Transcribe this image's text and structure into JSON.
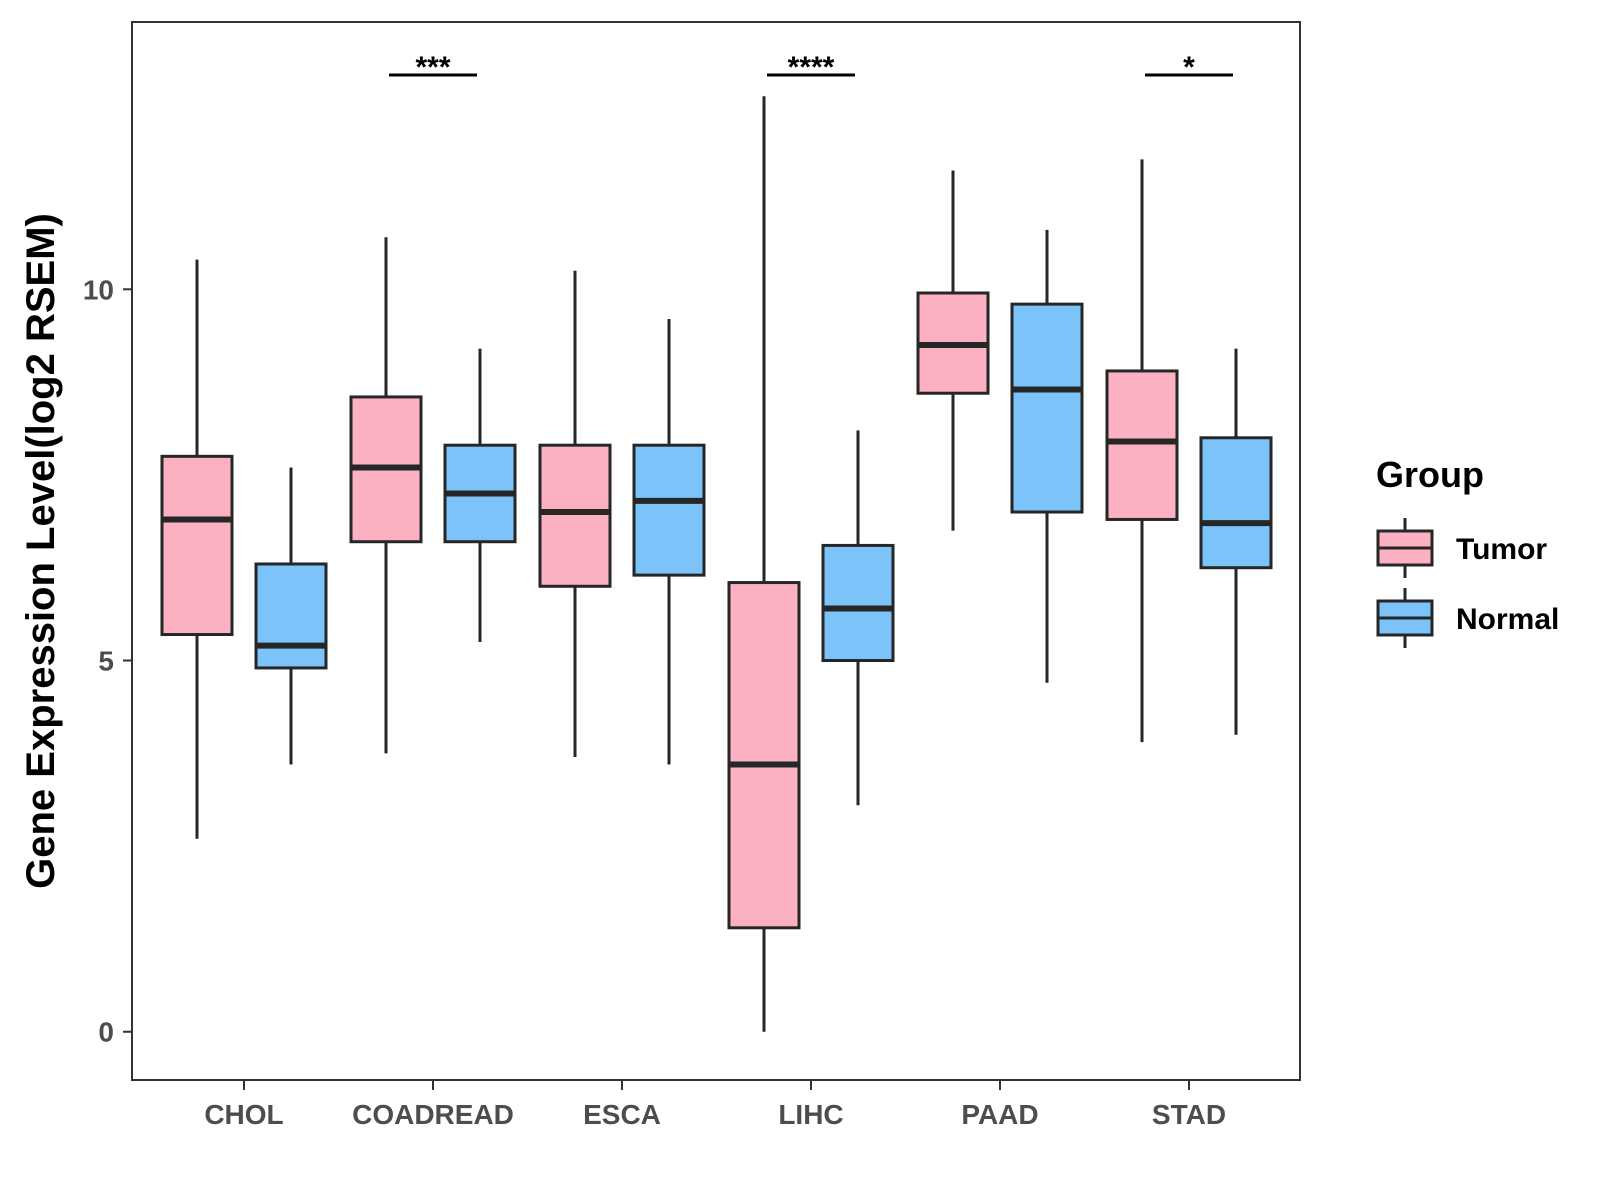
{
  "chart_data": {
    "type": "boxplot",
    "title": "",
    "xlabel": "",
    "ylabel": "Gene Expression Level(log2 RSEM)",
    "ylim": [
      -0.65,
      13.6
    ],
    "yticks": [
      0,
      5,
      10
    ],
    "ytick_labels": [
      "0",
      "5",
      "10"
    ],
    "categories": [
      "CHOL",
      "COADREAD",
      "ESCA",
      "LIHC",
      "PAAD",
      "STAD"
    ],
    "legend": {
      "title": "Group",
      "position": "right",
      "entries": [
        "Tumor",
        "Normal"
      ]
    },
    "colors": {
      "Tumor": "#fbb1c2",
      "Normal": "#7bc3f8",
      "outline": "#262626"
    },
    "series": [
      {
        "name": "Tumor",
        "boxes": [
          {
            "category": "CHOL",
            "min": 2.6,
            "q1": 5.35,
            "median": 6.9,
            "q3": 7.75,
            "max": 10.4
          },
          {
            "category": "COADREAD",
            "min": 3.75,
            "q1": 6.6,
            "median": 7.6,
            "q3": 8.55,
            "max": 10.7
          },
          {
            "category": "ESCA",
            "min": 3.7,
            "q1": 6.0,
            "median": 7.0,
            "q3": 7.9,
            "max": 10.25
          },
          {
            "category": "LIHC",
            "min": 0.0,
            "q1": 1.4,
            "median": 3.6,
            "q3": 6.05,
            "max": 12.6
          },
          {
            "category": "PAAD",
            "min": 6.75,
            "q1": 8.6,
            "median": 9.25,
            "q3": 9.95,
            "max": 11.6
          },
          {
            "category": "STAD",
            "min": 3.9,
            "q1": 6.9,
            "median": 7.95,
            "q3": 8.9,
            "max": 11.75
          }
        ]
      },
      {
        "name": "Normal",
        "boxes": [
          {
            "category": "CHOL",
            "min": 3.6,
            "q1": 4.9,
            "median": 5.2,
            "q3": 6.3,
            "max": 7.6
          },
          {
            "category": "COADREAD",
            "min": 5.25,
            "q1": 6.6,
            "median": 7.25,
            "q3": 7.9,
            "max": 9.2
          },
          {
            "category": "ESCA",
            "min": 3.6,
            "q1": 6.15,
            "median": 7.15,
            "q3": 7.9,
            "max": 9.6
          },
          {
            "category": "LIHC",
            "min": 3.05,
            "q1": 5.0,
            "median": 5.7,
            "q3": 6.55,
            "max": 8.1
          },
          {
            "category": "PAAD",
            "min": 4.7,
            "q1": 7.0,
            "median": 8.65,
            "q3": 9.8,
            "max": 10.8
          },
          {
            "category": "STAD",
            "min": 4.0,
            "q1": 6.25,
            "median": 6.85,
            "q3": 8.0,
            "max": 9.2
          }
        ]
      }
    ],
    "significance": [
      {
        "category": "CHOL",
        "label": ""
      },
      {
        "category": "COADREAD",
        "label": "***"
      },
      {
        "category": "ESCA",
        "label": ""
      },
      {
        "category": "LIHC",
        "label": "****"
      },
      {
        "category": "PAAD",
        "label": ""
      },
      {
        "category": "STAD",
        "label": "*"
      }
    ]
  }
}
